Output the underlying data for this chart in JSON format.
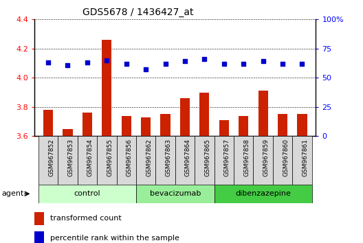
{
  "title": "GDS5678 / 1436427_at",
  "samples": [
    "GSM967852",
    "GSM967853",
    "GSM967854",
    "GSM967855",
    "GSM967856",
    "GSM967862",
    "GSM967863",
    "GSM967864",
    "GSM967865",
    "GSM967857",
    "GSM967858",
    "GSM967859",
    "GSM967860",
    "GSM967861"
  ],
  "transformed_count": [
    3.78,
    3.65,
    3.76,
    4.26,
    3.74,
    3.73,
    3.75,
    3.86,
    3.9,
    3.71,
    3.74,
    3.91,
    3.75,
    3.75
  ],
  "percentile_rank": [
    63,
    61,
    63,
    65,
    62,
    57,
    62,
    64,
    66,
    62,
    62,
    64,
    62,
    62
  ],
  "bar_color": "#cc2200",
  "dot_color": "#0000cc",
  "ylim_left": [
    3.6,
    4.4
  ],
  "ylim_right": [
    0,
    100
  ],
  "yticks_left": [
    3.6,
    3.8,
    4.0,
    4.2,
    4.4
  ],
  "yticks_right": [
    0,
    25,
    50,
    75,
    100
  ],
  "ytick_labels_right": [
    "0",
    "25",
    "50",
    "75",
    "100%"
  ],
  "groups": [
    {
      "label": "control",
      "start": 0,
      "end": 5,
      "color": "#ccffcc"
    },
    {
      "label": "bevacizumab",
      "start": 5,
      "end": 9,
      "color": "#99ee99"
    },
    {
      "label": "dibenzazepine",
      "start": 9,
      "end": 14,
      "color": "#44cc44"
    }
  ],
  "legend_bar_label": "transformed count",
  "legend_dot_label": "percentile rank within the sample",
  "agent_label": "agent",
  "baseline": 3.6,
  "plot_bg_color": "#ffffff",
  "tick_bg_color": "#d8d8d8"
}
